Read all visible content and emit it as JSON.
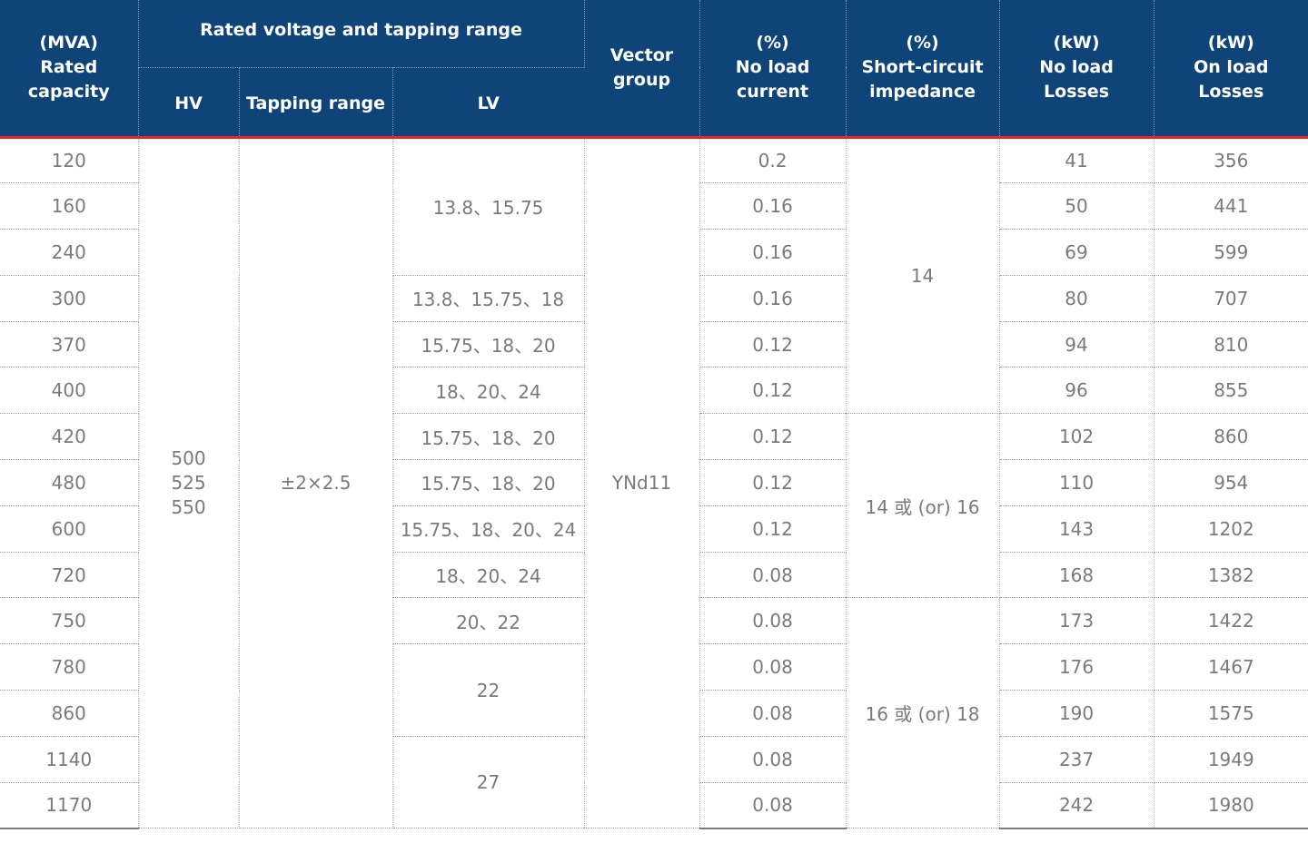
{
  "headers": {
    "capacity": [
      "(MVA)",
      "Rated",
      "capacity"
    ],
    "voltage_group": "Rated voltage and tapping range",
    "hv": "HV",
    "tapping": "Tapping range",
    "lv": "LV",
    "vector": [
      "Vector",
      "group"
    ],
    "no_load_current": [
      "(%)",
      "No load",
      "current"
    ],
    "impedance": [
      "(%)",
      "Short-circuit",
      "impedance"
    ],
    "no_load_losses": [
      "(kW)",
      "No load",
      "Losses"
    ],
    "on_load_losses": [
      "(kW)",
      "On load",
      "Losses"
    ]
  },
  "merged": {
    "hv": [
      "500",
      "525",
      "550"
    ],
    "tapping": "±2×2.5",
    "vector": "YNd11",
    "lv": [
      "13.8、15.75",
      "13.8、15.75、18",
      "15.75、18、20",
      "18、20、24",
      "15.75、18、20",
      "15.75、18、20",
      "15.75、18、20、24",
      "18、20、24",
      "20、22",
      "22",
      "27"
    ],
    "impedance": [
      "14",
      "14 或 (or) 16",
      "16 或 (or) 18"
    ]
  },
  "rows": [
    {
      "capacity": "120",
      "current": "0.2",
      "nll": "41",
      "oll": "356"
    },
    {
      "capacity": "160",
      "current": "0.16",
      "nll": "50",
      "oll": "441"
    },
    {
      "capacity": "240",
      "current": "0.16",
      "nll": "69",
      "oll": "599"
    },
    {
      "capacity": "300",
      "current": "0.16",
      "nll": "80",
      "oll": "707"
    },
    {
      "capacity": "370",
      "current": "0.12",
      "nll": "94",
      "oll": "810"
    },
    {
      "capacity": "400",
      "current": "0.12",
      "nll": "96",
      "oll": "855"
    },
    {
      "capacity": "420",
      "current": "0.12",
      "nll": "102",
      "oll": "860"
    },
    {
      "capacity": "480",
      "current": "0.12",
      "nll": "110",
      "oll": "954"
    },
    {
      "capacity": "600",
      "current": "0.12",
      "nll": "143",
      "oll": "1202"
    },
    {
      "capacity": "720",
      "current": "0.08",
      "nll": "168",
      "oll": "1382"
    },
    {
      "capacity": "750",
      "current": "0.08",
      "nll": "173",
      "oll": "1422"
    },
    {
      "capacity": "780",
      "current": "0.08",
      "nll": "176",
      "oll": "1467"
    },
    {
      "capacity": "860",
      "current": "0.08",
      "nll": "190",
      "oll": "1575"
    },
    {
      "capacity": "1140",
      "current": "0.08",
      "nll": "237",
      "oll": "1949"
    },
    {
      "capacity": "1170",
      "current": "0.08",
      "nll": "242",
      "oll": "1980"
    }
  ]
}
